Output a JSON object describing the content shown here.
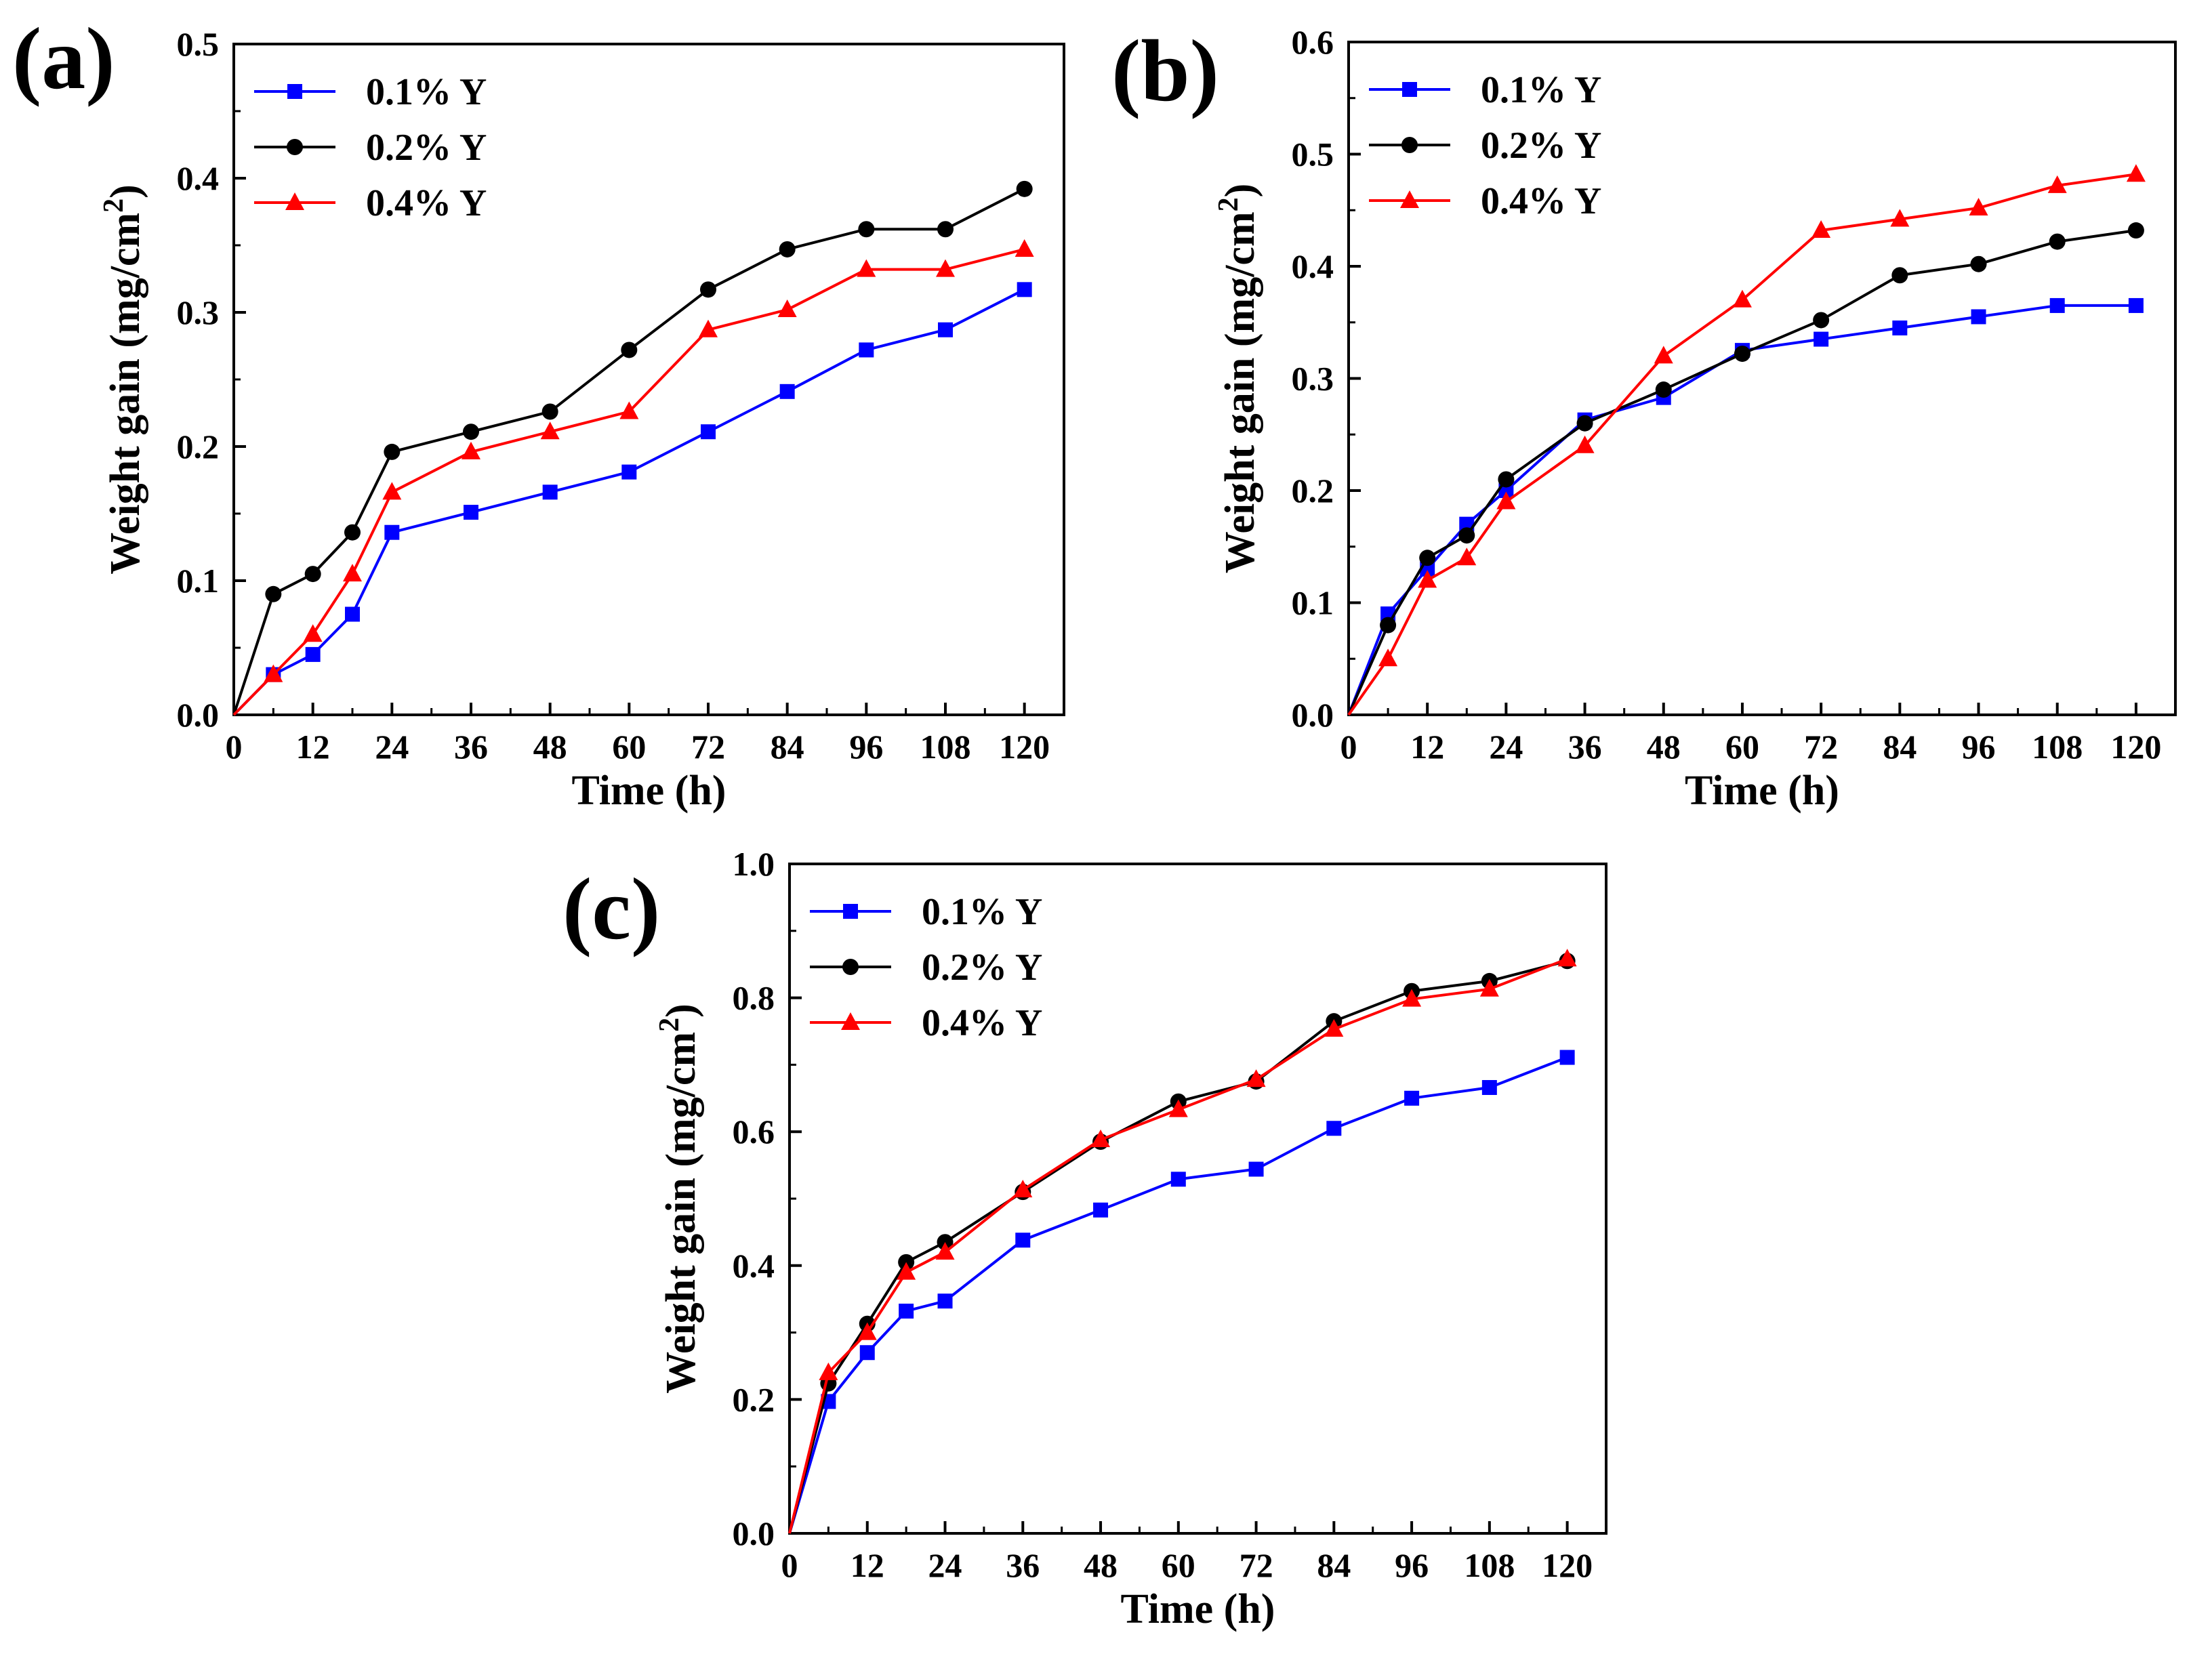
{
  "colors": {
    "s1": "#0000ff",
    "s2": "#000000",
    "s3": "#ff0000"
  },
  "chart_data": [
    {
      "type": "line",
      "panel": "(a)",
      "xlabel": "Time (h)",
      "ylabel": "Weight gain (mg/cm",
      "ylabel_sup": "2",
      "ylabel_close": ")",
      "xlim": [
        0,
        126
      ],
      "ylim": [
        0,
        0.5
      ],
      "xticks": [
        "0",
        "12",
        "24",
        "36",
        "48",
        "60",
        "72",
        "84",
        "96",
        "108",
        "120"
      ],
      "yticks": [
        "0.0",
        "0.1",
        "0.2",
        "0.3",
        "0.4",
        "0.5"
      ],
      "x": [
        0,
        6,
        12,
        18,
        24,
        36,
        48,
        60,
        72,
        84,
        96,
        108,
        120
      ],
      "series": [
        {
          "name": "0.1% Y",
          "marker": "square",
          "values": [
            0,
            0.03,
            0.045,
            0.075,
            0.136,
            0.151,
            0.166,
            0.181,
            0.211,
            0.241,
            0.272,
            0.287,
            0.317
          ]
        },
        {
          "name": "0.2% Y",
          "marker": "circle",
          "values": [
            0,
            0.09,
            0.105,
            0.136,
            0.196,
            0.211,
            0.226,
            0.272,
            0.317,
            0.347,
            0.362,
            0.362,
            0.392
          ]
        },
        {
          "name": "0.4% Y",
          "marker": "triangle",
          "values": [
            0,
            0.03,
            0.06,
            0.105,
            0.166,
            0.196,
            0.211,
            0.226,
            0.287,
            0.302,
            0.332,
            0.332,
            0.347
          ]
        }
      ]
    },
    {
      "type": "line",
      "panel": "(b)",
      "xlabel": "Time (h)",
      "ylabel": "Weight gain (mg/cm",
      "ylabel_sup": "2",
      "ylabel_close": ")",
      "xlim": [
        0,
        126
      ],
      "ylim": [
        0,
        0.6
      ],
      "xticks": [
        "0",
        "12",
        "24",
        "36",
        "48",
        "60",
        "72",
        "84",
        "96",
        "108",
        "120"
      ],
      "yticks": [
        "0.0",
        "0.1",
        "0.2",
        "0.3",
        "0.4",
        "0.5",
        "0.6"
      ],
      "x": [
        0,
        6,
        12,
        18,
        24,
        36,
        48,
        60,
        72,
        84,
        96,
        108,
        120
      ],
      "series": [
        {
          "name": "0.1% Y",
          "marker": "square",
          "values": [
            0,
            0.09,
            0.13,
            0.17,
            0.2,
            0.263,
            0.283,
            0.325,
            0.335,
            0.345,
            0.355,
            0.365,
            0.365
          ]
        },
        {
          "name": "0.2% Y",
          "marker": "circle",
          "values": [
            0,
            0.08,
            0.14,
            0.16,
            0.21,
            0.26,
            0.29,
            0.322,
            0.352,
            0.392,
            0.402,
            0.422,
            0.432
          ]
        },
        {
          "name": "0.4% Y",
          "marker": "triangle",
          "values": [
            0,
            0.05,
            0.12,
            0.14,
            0.19,
            0.24,
            0.32,
            0.37,
            0.432,
            0.442,
            0.452,
            0.472,
            0.482
          ]
        }
      ]
    },
    {
      "type": "line",
      "panel": "(c)",
      "xlabel": "Time (h)",
      "ylabel": "Weight gain (mg/cm",
      "ylabel_sup": "2",
      "ylabel_close": ")",
      "xlim": [
        0,
        126
      ],
      "ylim": [
        0,
        1.0
      ],
      "xticks": [
        "0",
        "12",
        "24",
        "36",
        "48",
        "60",
        "72",
        "84",
        "96",
        "108",
        "120"
      ],
      "yticks": [
        "0.0",
        "0.2",
        "0.4",
        "0.6",
        "0.8",
        "1.0"
      ],
      "x": [
        0,
        6,
        12,
        18,
        24,
        36,
        48,
        60,
        72,
        84,
        96,
        108,
        120
      ],
      "series": [
        {
          "name": "0.1% Y",
          "marker": "square",
          "values": [
            0,
            0.197,
            0.27,
            0.332,
            0.347,
            0.438,
            0.483,
            0.529,
            0.544,
            0.605,
            0.65,
            0.666,
            0.711
          ]
        },
        {
          "name": "0.2% Y",
          "marker": "circle",
          "values": [
            0,
            0.224,
            0.313,
            0.405,
            0.435,
            0.51,
            0.585,
            0.645,
            0.675,
            0.765,
            0.81,
            0.825,
            0.855
          ]
        },
        {
          "name": "0.4% Y",
          "marker": "triangle",
          "values": [
            0,
            0.24,
            0.3,
            0.39,
            0.42,
            0.513,
            0.588,
            0.633,
            0.678,
            0.753,
            0.798,
            0.813,
            0.858
          ]
        }
      ]
    }
  ]
}
